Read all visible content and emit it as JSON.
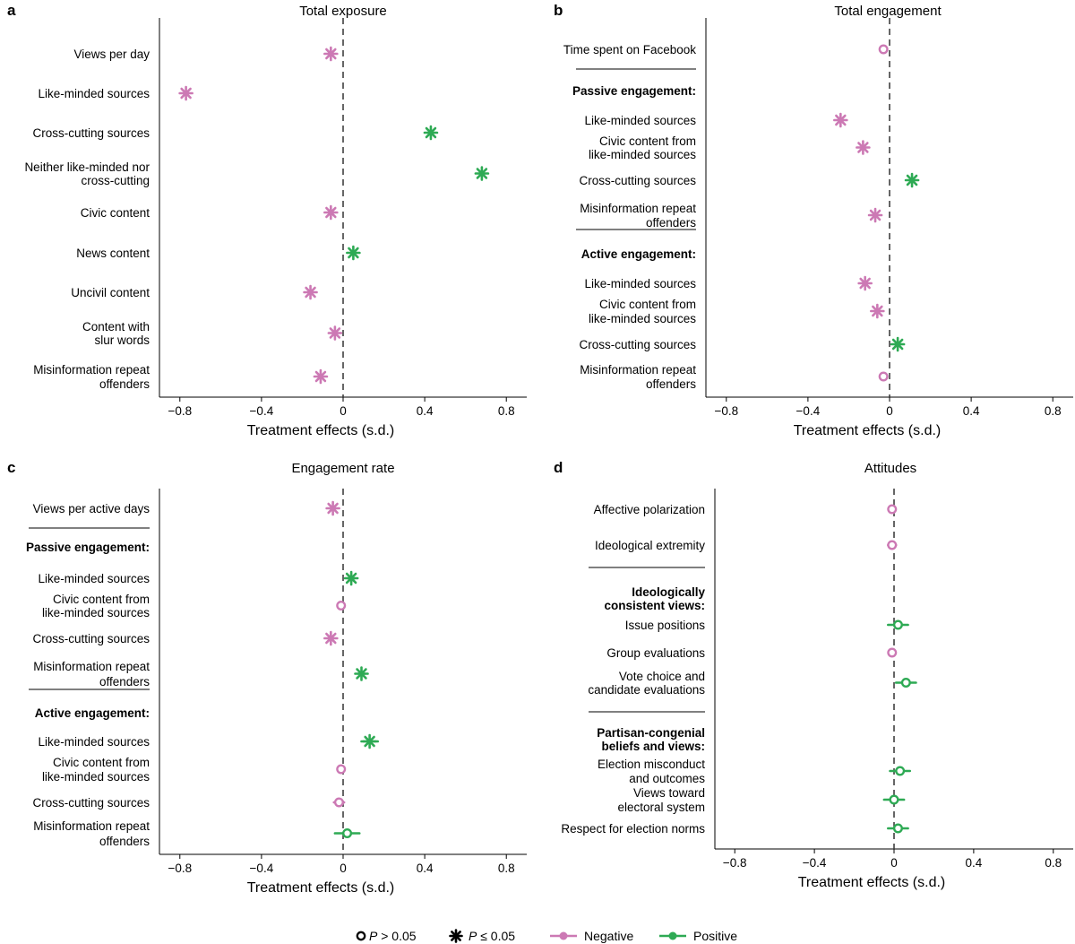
{
  "colors": {
    "negative": "#cc79b4",
    "positive": "#2eaa54",
    "axis": "#000000",
    "zero_line": "#333333"
  },
  "legend": [
    {
      "marker": "open-circle",
      "label": "P > 0.05",
      "italic_part": "P",
      "rest": " > 0.05"
    },
    {
      "marker": "asterisk",
      "label": "P ≤ 0.05",
      "italic_part": "P",
      "rest": " ≤ 0.05"
    },
    {
      "marker": "line-negative",
      "label": "Negative"
    },
    {
      "marker": "line-positive",
      "label": "Positive"
    }
  ],
  "chart_data": [
    {
      "letter": "a",
      "title": "Total exposure",
      "type": "scatter",
      "xlabel": "Treatment effects (s.d.)",
      "xlim": [
        -0.9,
        0.9
      ],
      "ticks": [
        "−0.8",
        "−0.4",
        "0",
        "0.4",
        "0.8"
      ],
      "tick_values": [
        -0.8,
        -0.4,
        0,
        0.4,
        0.8
      ],
      "rows": [
        {
          "lines": [
            "Views per day"
          ],
          "value": -0.06,
          "ci": 0.012,
          "sig": true
        },
        {
          "lines": [
            "Like-minded sources"
          ],
          "value": -0.77,
          "ci": 0.012,
          "sig": true
        },
        {
          "lines": [
            "Cross-cutting sources"
          ],
          "value": 0.43,
          "ci": 0.012,
          "sig": true
        },
        {
          "lines": [
            "Neither like-minded nor",
            "cross-cutting"
          ],
          "value": 0.68,
          "ci": 0.012,
          "sig": true
        },
        {
          "lines": [
            "Civic content"
          ],
          "value": -0.06,
          "ci": 0.012,
          "sig": true
        },
        {
          "lines": [
            "News content"
          ],
          "value": 0.05,
          "ci": 0.012,
          "sig": true
        },
        {
          "lines": [
            "Uncivil content"
          ],
          "value": -0.16,
          "ci": 0.012,
          "sig": true
        },
        {
          "lines": [
            "Content with",
            "slur words"
          ],
          "value": -0.04,
          "ci": 0.012,
          "sig": true
        },
        {
          "lines": [
            "Misinformation repeat",
            "offenders"
          ],
          "value": -0.11,
          "ci": 0.012,
          "sig": true
        }
      ]
    },
    {
      "letter": "b",
      "title": "Total engagement",
      "type": "scatter",
      "xlabel": "Treatment effects (s.d.)",
      "xlim": [
        -0.9,
        0.9
      ],
      "ticks": [
        "−0.8",
        "−0.4",
        "0",
        "0.4",
        "0.8"
      ],
      "tick_values": [
        -0.8,
        -0.4,
        0,
        0.4,
        0.8
      ],
      "rows": [
        {
          "lines": [
            "Time spent on Facebook"
          ],
          "value": -0.03,
          "ci": 0.015,
          "sig": false
        },
        {
          "lines": [
            "Passive engagement:"
          ],
          "header": true
        },
        {
          "lines": [
            "Like-minded sources"
          ],
          "value": -0.24,
          "ci": 0.012,
          "sig": true
        },
        {
          "lines": [
            "Civic content from",
            "like-minded sources"
          ],
          "value": -0.13,
          "ci": 0.012,
          "sig": true
        },
        {
          "lines": [
            "Cross-cutting sources"
          ],
          "value": 0.11,
          "ci": 0.012,
          "sig": true
        },
        {
          "lines": [
            "Misinformation repeat",
            "offenders"
          ],
          "value": -0.07,
          "ci": 0.012,
          "sig": true
        },
        {
          "lines": [
            "Active engagement:"
          ],
          "header": true
        },
        {
          "lines": [
            "Like-minded sources"
          ],
          "value": -0.12,
          "ci": 0.012,
          "sig": true
        },
        {
          "lines": [
            "Civic content from",
            "like-minded sources"
          ],
          "value": -0.06,
          "ci": 0.012,
          "sig": true
        },
        {
          "lines": [
            "Cross-cutting sources"
          ],
          "value": 0.04,
          "ci": 0.012,
          "sig": true
        },
        {
          "lines": [
            "Misinformation repeat",
            "offenders"
          ],
          "value": -0.03,
          "ci": 0.015,
          "sig": false
        }
      ]
    },
    {
      "letter": "c",
      "title": "Engagement rate",
      "type": "scatter",
      "xlabel": "Treatment effects (s.d.)",
      "xlim": [
        -0.9,
        0.9
      ],
      "ticks": [
        "−0.8",
        "−0.4",
        "0",
        "0.4",
        "0.8"
      ],
      "tick_values": [
        -0.8,
        -0.4,
        0,
        0.4,
        0.8
      ],
      "rows": [
        {
          "lines": [
            "Views per active days"
          ],
          "value": -0.05,
          "ci": 0.012,
          "sig": true
        },
        {
          "lines": [
            "Passive engagement:"
          ],
          "header": true
        },
        {
          "lines": [
            "Like-minded sources"
          ],
          "value": 0.04,
          "ci": 0.015,
          "sig": true
        },
        {
          "lines": [
            "Civic content from",
            "like-minded sources"
          ],
          "value": -0.01,
          "ci": 0.012,
          "sig": false
        },
        {
          "lines": [
            "Cross-cutting sources"
          ],
          "value": -0.06,
          "ci": 0.012,
          "sig": true
        },
        {
          "lines": [
            "Misinformation repeat",
            "offenders"
          ],
          "value": 0.09,
          "ci": 0.015,
          "sig": true
        },
        {
          "lines": [
            "Active engagement:"
          ],
          "header": true
        },
        {
          "lines": [
            "Like-minded sources"
          ],
          "value": 0.13,
          "ci": 0.04,
          "sig": true
        },
        {
          "lines": [
            "Civic content from",
            "like-minded sources"
          ],
          "value": -0.01,
          "ci": 0.012,
          "sig": false
        },
        {
          "lines": [
            "Cross-cutting sources"
          ],
          "value": -0.02,
          "ci": 0.025,
          "sig": false
        },
        {
          "lines": [
            "Misinformation repeat",
            "offenders"
          ],
          "value": 0.02,
          "ci": 0.06,
          "sig": false
        }
      ]
    },
    {
      "letter": "d",
      "title": "Attitudes",
      "type": "scatter",
      "xlabel": "Treatment effects (s.d.)",
      "xlim": [
        -0.9,
        0.9
      ],
      "ticks": [
        "−0.8",
        "−0.4",
        "0",
        "0.4",
        "0.8"
      ],
      "tick_values": [
        -0.8,
        -0.4,
        0,
        0.4,
        0.8
      ],
      "rows": [
        {
          "lines": [
            "Affective polarization"
          ],
          "value": -0.01,
          "ci": 0.012,
          "sig": false
        },
        {
          "lines": [
            "Ideological extremity"
          ],
          "value": -0.01,
          "ci": 0.02,
          "sig": false
        },
        {
          "lines": [
            "Ideologically",
            "consistent views:"
          ],
          "header": true
        },
        {
          "lines": [
            "Issue positions"
          ],
          "value": 0.02,
          "ci": 0.05,
          "sig": false
        },
        {
          "lines": [
            "Group evaluations"
          ],
          "value": -0.01,
          "ci": 0.012,
          "sig": false
        },
        {
          "lines": [
            "Vote choice and",
            "candidate evaluations"
          ],
          "value": 0.06,
          "ci": 0.05,
          "sig": false
        },
        {
          "lines": [
            "Partisan-congenial",
            "beliefs and views:"
          ],
          "header": true
        },
        {
          "lines": [
            "Election misconduct",
            "and outcomes"
          ],
          "value": 0.03,
          "ci": 0.05,
          "sig": false
        },
        {
          "lines": [
            "Views toward",
            "electoral system"
          ],
          "value": 0.0,
          "ci": 0.05,
          "sig": false
        },
        {
          "lines": [
            "Respect for election norms"
          ],
          "value": 0.02,
          "ci": 0.05,
          "sig": false
        }
      ]
    }
  ]
}
